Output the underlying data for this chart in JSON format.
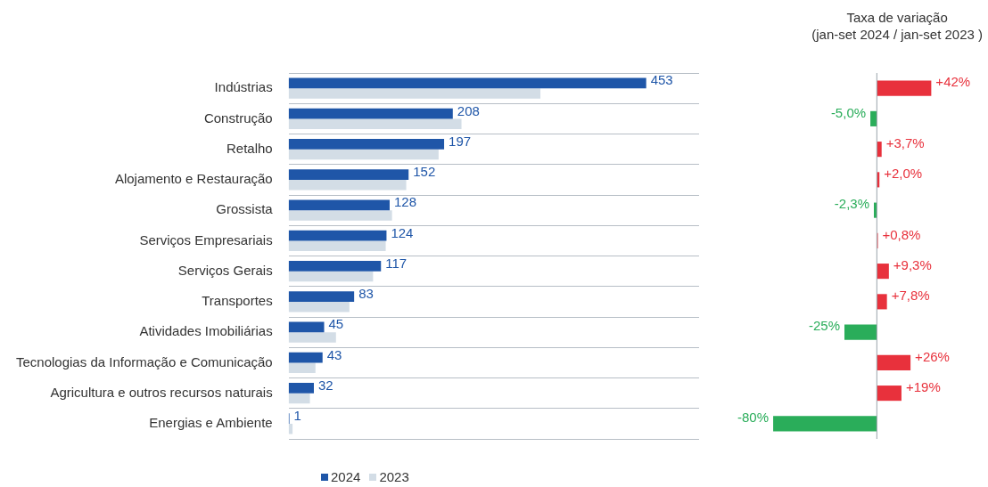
{
  "chart_data": [
    {
      "type": "bar",
      "orientation": "horizontal",
      "categories": [
        "Indústrias",
        "Construção",
        "Retalho",
        "Alojamento e Restauração",
        "Grossista",
        "Serviços Empresariais",
        "Serviços Gerais",
        "Transportes",
        "Atividades Imobiliárias",
        "Tecnologias da Informação e Comunicação",
        "Agricultura e outros recursos naturais",
        "Energias e Ambiente"
      ],
      "series": [
        {
          "name": "2024",
          "color": "#1f56a8",
          "values": [
            453,
            208,
            197,
            152,
            128,
            124,
            117,
            83,
            45,
            43,
            32,
            1
          ],
          "value_labels": [
            "453",
            "208",
            "197",
            "152",
            "128",
            "124",
            "117",
            "83",
            "45",
            "43",
            "32",
            "1"
          ]
        },
        {
          "name": "2023",
          "color": "#d3dde6",
          "values": [
            319,
            219,
            190,
            149,
            131,
            123,
            107,
            77,
            60,
            34,
            27,
            5
          ]
        }
      ],
      "xlim": [
        0,
        520
      ],
      "tick_labels": "y",
      "grid": "y",
      "legend": "bottom left"
    },
    {
      "type": "bar",
      "orientation": "horizontal",
      "title": "Taxa de variação\n(jan-set 2024 / jan-set 2023 )",
      "categories": [
        null,
        null,
        null,
        null,
        null,
        null,
        null,
        null,
        null,
        null,
        null,
        null
      ],
      "values": [
        42,
        -5.0,
        3.7,
        2.0,
        -2.3,
        0.8,
        9.3,
        7.8,
        -25,
        26,
        19,
        -80
      ],
      "colors": [
        "#e8313c",
        "#2aad5a",
        "#e8313c",
        "#e8313c",
        "#2aad5a",
        "#e8313c",
        "#e8313c",
        "#e8313c",
        "#2aad5a",
        "#e8313c",
        "#e8313c",
        "#2aad5a"
      ],
      "value_labels": [
        "+42%",
        "-5,0%",
        "+3,7%",
        "+2,0%",
        "-2,3%",
        "+0,8%",
        "+9,3%",
        "+7,8%",
        "-25%",
        "+26%",
        "+19%",
        "-80%"
      ],
      "tick_labels": false,
      "grid": false,
      "ref_lines": [
        {
          "axis": "x",
          "value": 0,
          "color": "#9aa3ab"
        }
      ]
    }
  ]
}
